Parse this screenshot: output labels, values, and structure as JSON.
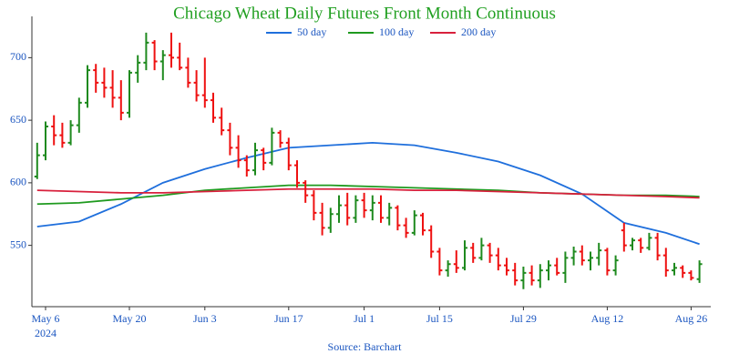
{
  "chart_data": {
    "type": "ohlc",
    "title": "Chicago Wheat Daily Futures Front Month Continuous",
    "source": "Source: Barchart",
    "categories": [
      null,
      "May 6",
      null,
      null,
      null,
      null,
      null,
      null,
      null,
      null,
      null,
      "May 20",
      null,
      null,
      null,
      null,
      null,
      null,
      null,
      null,
      "Jun 3",
      null,
      null,
      null,
      null,
      null,
      null,
      null,
      null,
      null,
      "Jun 17",
      null,
      null,
      null,
      null,
      null,
      null,
      null,
      null,
      "Jul 1",
      null,
      null,
      null,
      null,
      null,
      null,
      null,
      null,
      "Jul 15",
      null,
      null,
      null,
      null,
      null,
      null,
      null,
      null,
      null,
      "Jul 29",
      null,
      null,
      null,
      null,
      null,
      null,
      null,
      null,
      null,
      "Aug 12",
      null,
      null,
      null,
      null,
      null,
      null,
      null,
      null,
      null,
      "Aug 26",
      null
    ],
    "x_year_label": "2024",
    "ohlc": [
      [
        605,
        632,
        603,
        622
      ],
      [
        622,
        649,
        618,
        645
      ],
      [
        645,
        654,
        630,
        638
      ],
      [
        638,
        648,
        628,
        632
      ],
      [
        632,
        650,
        630,
        646
      ],
      [
        646,
        668,
        640,
        664
      ],
      [
        664,
        694,
        660,
        690
      ],
      [
        690,
        695,
        672,
        680
      ],
      [
        680,
        692,
        668,
        676
      ],
      [
        676,
        690,
        660,
        668
      ],
      [
        668,
        682,
        650,
        656
      ],
      [
        656,
        690,
        652,
        688
      ],
      [
        688,
        702,
        680,
        696
      ],
      [
        696,
        720,
        690,
        712
      ],
      [
        712,
        714,
        690,
        697
      ],
      [
        697,
        706,
        682,
        702
      ],
      [
        702,
        720,
        692,
        700
      ],
      [
        700,
        712,
        690,
        692
      ],
      [
        692,
        700,
        676,
        680
      ],
      [
        680,
        690,
        665,
        670
      ],
      [
        670,
        700,
        660,
        666
      ],
      [
        666,
        672,
        648,
        652
      ],
      [
        652,
        660,
        638,
        642
      ],
      [
        642,
        648,
        622,
        628
      ],
      [
        628,
        638,
        612,
        618
      ],
      [
        618,
        622,
        605,
        610
      ],
      [
        610,
        632,
        606,
        626
      ],
      [
        626,
        628,
        610,
        616
      ],
      [
        616,
        644,
        614,
        640
      ],
      [
        640,
        642,
        628,
        632
      ],
      [
        632,
        636,
        610,
        614
      ],
      [
        614,
        618,
        596,
        600
      ],
      [
        600,
        602,
        584,
        590
      ],
      [
        590,
        594,
        570,
        576
      ],
      [
        576,
        584,
        558,
        564
      ],
      [
        564,
        580,
        560,
        575
      ],
      [
        575,
        590,
        568,
        582
      ],
      [
        582,
        592,
        566,
        572
      ],
      [
        572,
        590,
        568,
        586
      ],
      [
        586,
        592,
        572,
        578
      ],
      [
        578,
        590,
        570,
        584
      ],
      [
        584,
        590,
        568,
        572
      ],
      [
        572,
        584,
        566,
        580
      ],
      [
        580,
        582,
        562,
        566
      ],
      [
        566,
        572,
        556,
        560
      ],
      [
        560,
        578,
        558,
        574
      ],
      [
        574,
        576,
        558,
        562
      ],
      [
        562,
        566,
        540,
        545
      ],
      [
        545,
        548,
        526,
        530
      ],
      [
        530,
        538,
        525,
        535
      ],
      [
        535,
        546,
        528,
        532
      ],
      [
        532,
        554,
        530,
        548
      ],
      [
        548,
        552,
        536,
        540
      ],
      [
        540,
        556,
        538,
        550
      ],
      [
        550,
        552,
        536,
        542
      ],
      [
        542,
        548,
        530,
        534
      ],
      [
        534,
        540,
        526,
        530
      ],
      [
        530,
        536,
        518,
        522
      ],
      [
        522,
        533,
        515,
        528
      ],
      [
        528,
        534,
        518,
        522
      ],
      [
        522,
        535,
        516,
        530
      ],
      [
        530,
        538,
        522,
        534
      ],
      [
        534,
        540,
        526,
        528
      ],
      [
        528,
        545,
        520,
        540
      ],
      [
        540,
        549,
        534,
        545
      ],
      [
        545,
        550,
        534,
        538
      ],
      [
        538,
        545,
        530,
        540
      ],
      [
        540,
        552,
        534,
        546
      ],
      [
        546,
        548,
        526,
        530
      ],
      [
        530,
        542,
        526,
        538
      ],
      [
        562,
        568,
        545,
        550
      ],
      [
        550,
        556,
        546,
        554
      ],
      [
        554,
        556,
        544,
        548
      ],
      [
        548,
        560,
        546,
        556
      ],
      [
        556,
        560,
        538,
        542
      ],
      [
        542,
        548,
        525,
        530
      ],
      [
        530,
        536,
        526,
        532
      ],
      [
        532,
        534,
        524,
        528
      ],
      [
        528,
        530,
        522,
        524
      ],
      [
        523,
        538,
        520,
        535
      ]
    ],
    "up_color": "#1f8a1f",
    "down_color": "#ee1111",
    "series": [
      {
        "name": "50 day",
        "color": "#1f6fdc",
        "x": [
          0,
          5,
          10,
          15,
          20,
          25,
          30,
          35,
          40,
          45,
          50,
          55,
          60,
          65,
          70,
          75,
          79
        ],
        "values": [
          565,
          569,
          583,
          600,
          611,
          620,
          628,
          630,
          632,
          630,
          624,
          617,
          606,
          591,
          568,
          560,
          551
        ]
      },
      {
        "name": "100 day",
        "color": "#1f9a1f",
        "x": [
          0,
          5,
          10,
          15,
          20,
          25,
          30,
          35,
          40,
          45,
          50,
          55,
          60,
          65,
          70,
          75,
          79
        ],
        "values": [
          583,
          584,
          587,
          590,
          594,
          596,
          598,
          598,
          597,
          596,
          595,
          594,
          592,
          591,
          590,
          590,
          589
        ]
      },
      {
        "name": "200 day",
        "color": "#d8203c",
        "x": [
          0,
          5,
          10,
          15,
          20,
          25,
          30,
          35,
          40,
          45,
          50,
          55,
          60,
          65,
          70,
          75,
          79
        ],
        "values": [
          594,
          593,
          592,
          592,
          593,
          594,
          595,
          595,
          595,
          594,
          594,
          593,
          592,
          591,
          590,
          589,
          588
        ]
      }
    ],
    "ylim": [
      501,
      733
    ],
    "yticks": [
      550,
      600,
      650,
      700
    ]
  }
}
